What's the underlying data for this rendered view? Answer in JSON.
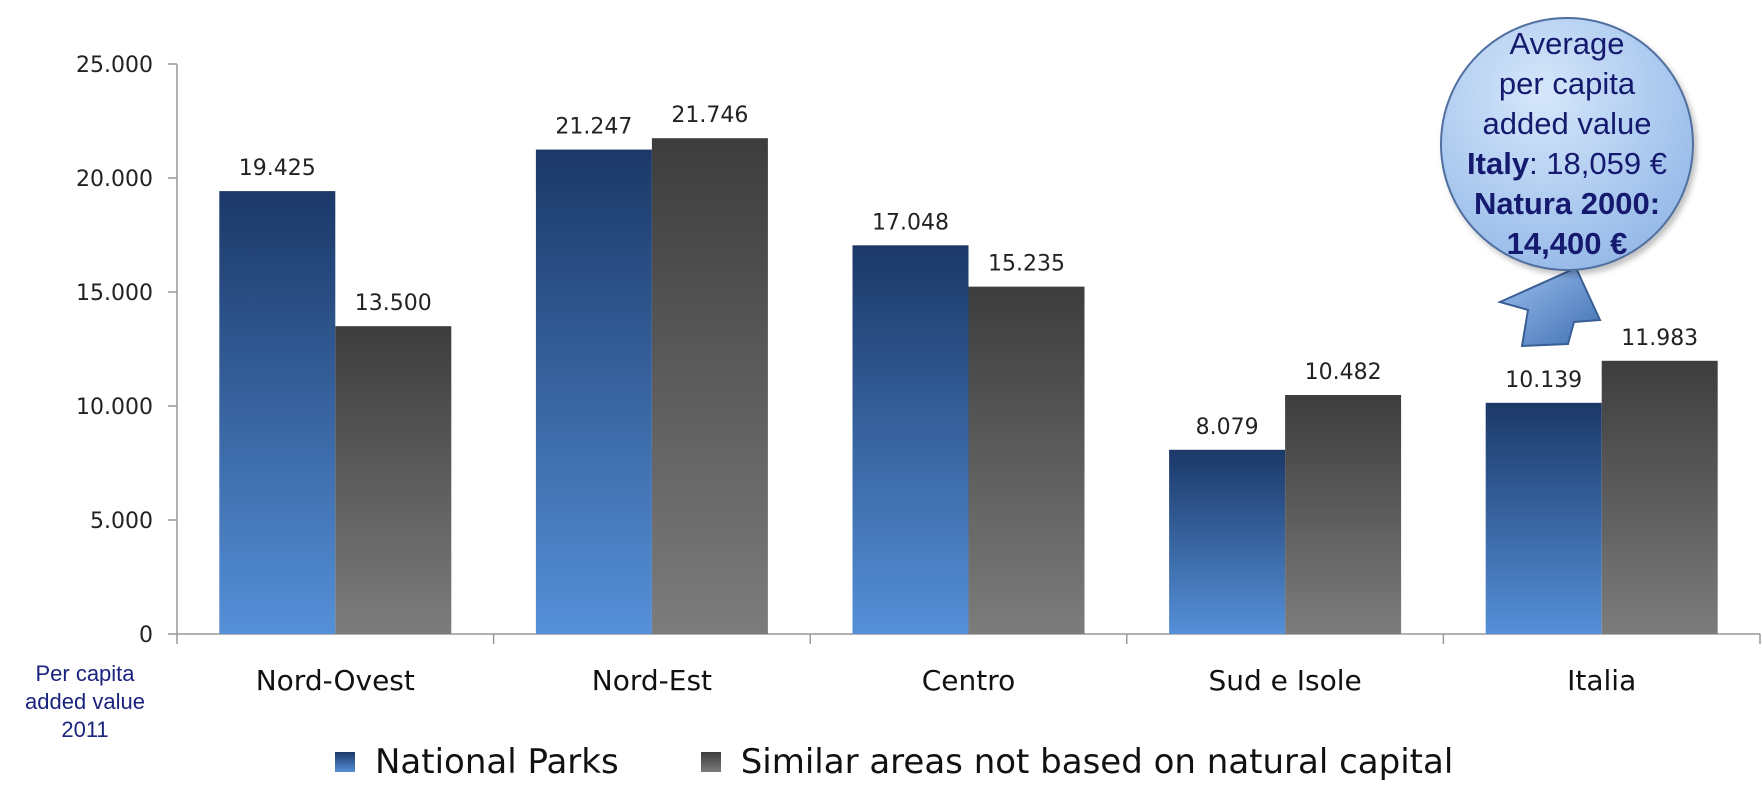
{
  "chart_data": {
    "type": "bar",
    "categories": [
      "Nord-Ovest",
      "Nord-Est",
      "Centro",
      "Sud e Isole",
      "Italia"
    ],
    "series": [
      {
        "name": "National Parks",
        "values": [
          19425,
          21247,
          17048,
          8079,
          10139
        ],
        "labels": [
          "19.425",
          "21.247",
          "17.048",
          "8.079",
          "10.139"
        ],
        "color": "#3a6fb7"
      },
      {
        "name": "Similar areas not based on natural capital",
        "values": [
          13500,
          21746,
          15235,
          10482,
          11983
        ],
        "labels": [
          "13.500",
          "21.746",
          "15.235",
          "10.482",
          "11.983"
        ],
        "color": "#5a5a5a"
      }
    ],
    "ylim": [
      0,
      25000
    ],
    "yticks": [
      0,
      5000,
      10000,
      15000,
      20000,
      25000
    ],
    "ytick_labels": [
      "0",
      "5.000",
      "10.000",
      "15.000",
      "20.000",
      "25.000"
    ],
    "ylabel": "Per capita added value 2011",
    "legend": "bottom"
  },
  "ylabel_lines": [
    "Per capita",
    "added value",
    "2011"
  ],
  "legend": {
    "item1": "National Parks",
    "item2": "Similar areas not based on natural capital"
  },
  "callout": {
    "line1": "Average",
    "line2": "per capita",
    "line3": "added value",
    "italy_label": "Italy",
    "italy_value": ": 18,059 €",
    "natura_label": "Natura 2000:",
    "natura_value": "14,400 €"
  }
}
